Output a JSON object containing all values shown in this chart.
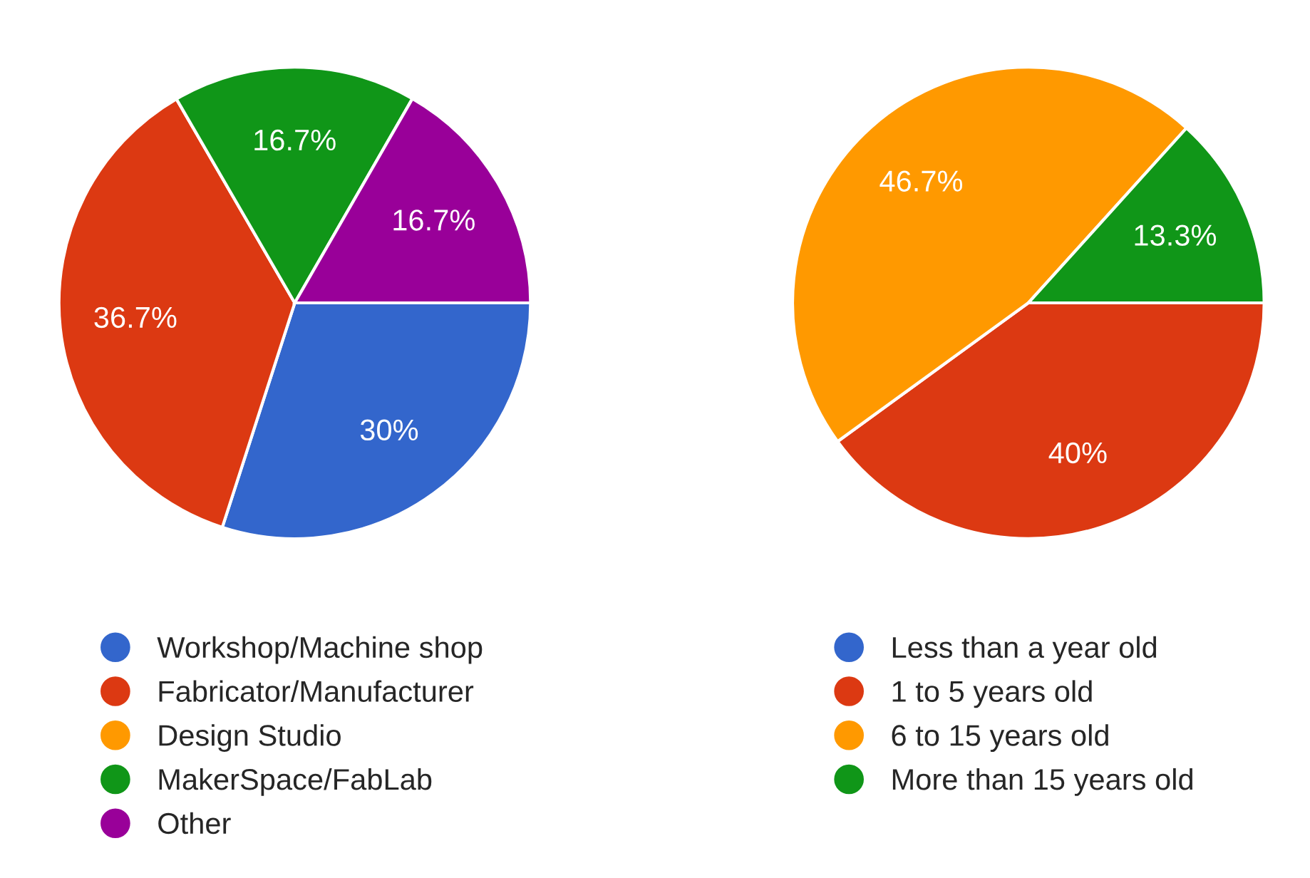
{
  "chart_data": [
    {
      "type": "pie",
      "categories": [
        "Workshop/Machine shop",
        "Fabricator/Manufacturer",
        "Design Studio",
        "MakerSpace/FabLab",
        "Other"
      ],
      "values": [
        30,
        36.7,
        0,
        16.7,
        16.7
      ],
      "colors": [
        "#3366cc",
        "#dc3912",
        "#ff9900",
        "#109618",
        "#990099"
      ],
      "value_labels": [
        "30%",
        "36.7%",
        null,
        "16.7%",
        "16.7%"
      ],
      "legend": "bottom"
    },
    {
      "type": "pie",
      "categories": [
        "Less than a year old",
        "1 to 5 years old",
        "6 to 15 years old",
        "More than 15 years old"
      ],
      "values": [
        0,
        40,
        46.7,
        13.3
      ],
      "colors": [
        "#3366cc",
        "#dc3912",
        "#ff9900",
        "#109618"
      ],
      "value_labels": [
        null,
        "40%",
        "46.7%",
        "13.3%"
      ],
      "legend": "bottom"
    }
  ]
}
